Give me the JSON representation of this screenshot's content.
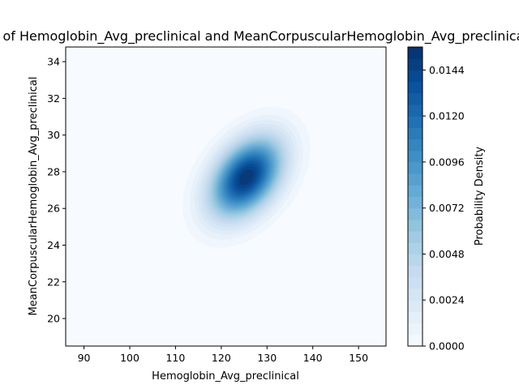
{
  "chart_data": {
    "type": "heatmap",
    "subtype": "kde-density-filled-contour",
    "title": "Distribution of Hemoglobin_Avg_preclinical and MeanCorpuscularHemoglobin_Avg_preclinical",
    "xlabel": "Hemoglobin_Avg_preclinical",
    "ylabel": "MeanCorpuscularHemoglobin_Avg_preclinical",
    "xlim": [
      86,
      156
    ],
    "ylim": [
      18.5,
      34.8
    ],
    "x_ticks": [
      90,
      100,
      110,
      120,
      130,
      140,
      150
    ],
    "y_ticks": [
      20,
      22,
      24,
      26,
      28,
      30,
      32,
      34
    ],
    "colormap": "Blues",
    "colorbar": {
      "label": "Probability Density",
      "range": [
        0,
        0.0156
      ],
      "ticks": [
        "0.0000",
        "0.0024",
        "0.0048",
        "0.0072",
        "0.0096",
        "0.0120",
        "0.0144"
      ],
      "levels": 26
    },
    "density": {
      "peak_x": 125.5,
      "peak_y": 27.7,
      "peak_value": 0.0156,
      "correlation": 0.72,
      "approx_support_x": [
        112,
        150
      ],
      "approx_support_y": [
        21.5,
        32.3
      ]
    },
    "grid": false,
    "colors": {
      "background": "#f7fbff",
      "low": "#deebf7",
      "mid": "#6baed6",
      "high": "#08306b"
    }
  }
}
